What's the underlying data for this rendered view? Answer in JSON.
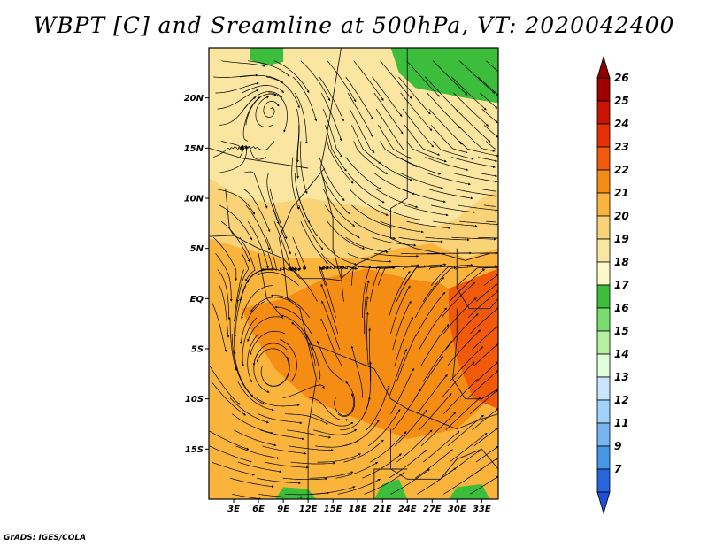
{
  "title": "WBPT [C] and Sreamline at 500hPa, VT: 2020042400",
  "credit": "GrADS: IGES/COLA",
  "map": {
    "lon_range": [
      0,
      35
    ],
    "lat_range": [
      -20,
      25
    ],
    "lat_ticks": [
      {
        "value": 20,
        "label": "20N"
      },
      {
        "value": 15,
        "label": "15N"
      },
      {
        "value": 10,
        "label": "10N"
      },
      {
        "value": 5,
        "label": "5N"
      },
      {
        "value": 0,
        "label": "EQ"
      },
      {
        "value": -5,
        "label": "5S"
      },
      {
        "value": -10,
        "label": "10S"
      },
      {
        "value": -15,
        "label": "15S"
      }
    ],
    "lon_ticks": [
      {
        "value": 3,
        "label": "3E"
      },
      {
        "value": 6,
        "label": "6E"
      },
      {
        "value": 9,
        "label": "9E"
      },
      {
        "value": 12,
        "label": "12E"
      },
      {
        "value": 15,
        "label": "15E"
      },
      {
        "value": 18,
        "label": "18E"
      },
      {
        "value": 21,
        "label": "21E"
      },
      {
        "value": 24,
        "label": "24E"
      },
      {
        "value": 27,
        "label": "27E"
      },
      {
        "value": 30,
        "label": "30E"
      },
      {
        "value": 33,
        "label": "33E"
      }
    ],
    "field": {
      "regions": [
        {
          "name": "north-orange-band",
          "level": 20
        },
        {
          "name": "congo-orange",
          "level": 21
        },
        {
          "name": "central-orange",
          "level": 22
        },
        {
          "name": "east-africa-warm",
          "level": 23
        },
        {
          "name": "green-northwest",
          "level": 17
        },
        {
          "name": "green-northeast",
          "level": 17
        },
        {
          "name": "green-south",
          "level": 17
        }
      ],
      "background_level": 19
    },
    "vortices": [
      {
        "name": "vortex-north",
        "lon": 7.7,
        "lat": 19
      },
      {
        "name": "vortex-southwest",
        "lon": 7.5,
        "lat": -7.5
      },
      {
        "name": "vortex-south",
        "lon": 16.5,
        "lat": -11
      }
    ]
  },
  "colorbar": {
    "levels": [
      {
        "label": "26",
        "color": "#a00000"
      },
      {
        "label": "25",
        "color": "#c81400"
      },
      {
        "label": "24",
        "color": "#e63200"
      },
      {
        "label": "23",
        "color": "#f05a0a"
      },
      {
        "label": "22",
        "color": "#f58c14"
      },
      {
        "label": "21",
        "color": "#fab43c"
      },
      {
        "label": "20",
        "color": "#fad278"
      },
      {
        "label": "19",
        "color": "#fae6a0"
      },
      {
        "label": "18",
        "color": "#fff8c8"
      },
      {
        "label": "17",
        "color": "#3cbe3c"
      },
      {
        "label": "16",
        "color": "#78dc6e"
      },
      {
        "label": "15",
        "color": "#b4f0a0"
      },
      {
        "label": "14",
        "color": "#e1ffdc"
      },
      {
        "label": "13",
        "color": "#c8e6ff"
      },
      {
        "label": "12",
        "color": "#a0d2fa"
      },
      {
        "label": "11",
        "color": "#78b4f0"
      },
      {
        "label": "9",
        "color": "#4696e6"
      },
      {
        "label": "7",
        "color": "#2864dc"
      }
    ],
    "top_color": "#8c0000",
    "bottom_color": "#1e50d2"
  }
}
